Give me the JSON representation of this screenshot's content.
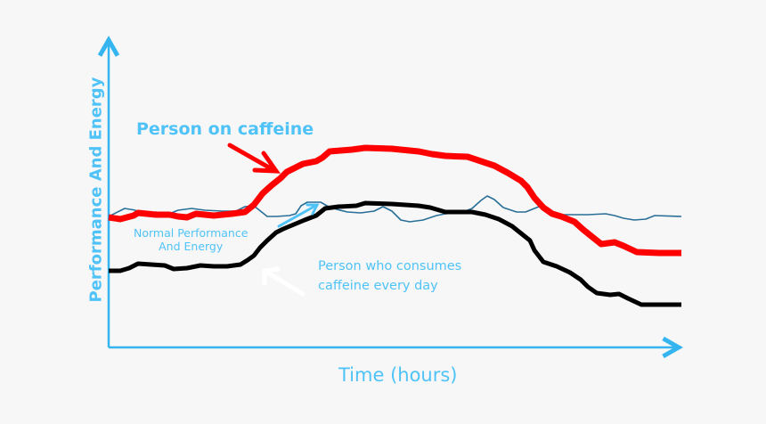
{
  "chart_data": {
    "type": "line",
    "xlabel": "Time (hours)",
    "ylabel": "Performance And Energy",
    "annotations": {
      "caffeine": "Person on caffeine",
      "normal_line1": "Normal Performance",
      "normal_line2": "And Energy",
      "daily_line1": "Person who consumes",
      "daily_line2": "caffeine every day"
    },
    "series_colors": {
      "person_on_caffeine": "#ff0000",
      "normal": "#2a6f97",
      "daily_consumer": "#000000"
    },
    "axis_color": "#35b5f0",
    "label_color": "#4fc3f7"
  }
}
